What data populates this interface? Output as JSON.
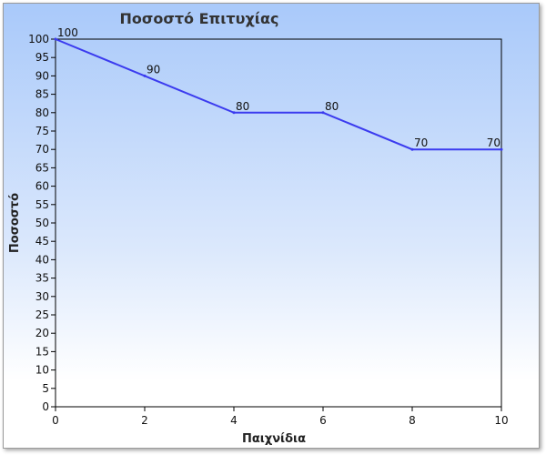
{
  "chart_data": {
    "type": "line",
    "title": "Ποσοστό Επιτυχίας",
    "xlabel": "Παιχνίδια",
    "ylabel": "Ποσοστό",
    "xlim": [
      0,
      10
    ],
    "ylim": [
      0,
      100
    ],
    "x_ticks": [
      0,
      2,
      4,
      6,
      8,
      10
    ],
    "y_ticks": [
      0,
      5,
      10,
      15,
      20,
      25,
      30,
      35,
      40,
      45,
      50,
      55,
      60,
      65,
      70,
      75,
      80,
      85,
      90,
      95,
      100
    ],
    "grid": false,
    "legend": "none",
    "series": [
      {
        "x": [
          0,
          2,
          4,
          6,
          8,
          10
        ],
        "y": [
          100,
          90,
          80,
          80,
          70,
          70
        ],
        "labels": [
          "100",
          "90",
          "80",
          "80",
          "70",
          "70"
        ],
        "color": "#3b3bef"
      }
    ]
  }
}
